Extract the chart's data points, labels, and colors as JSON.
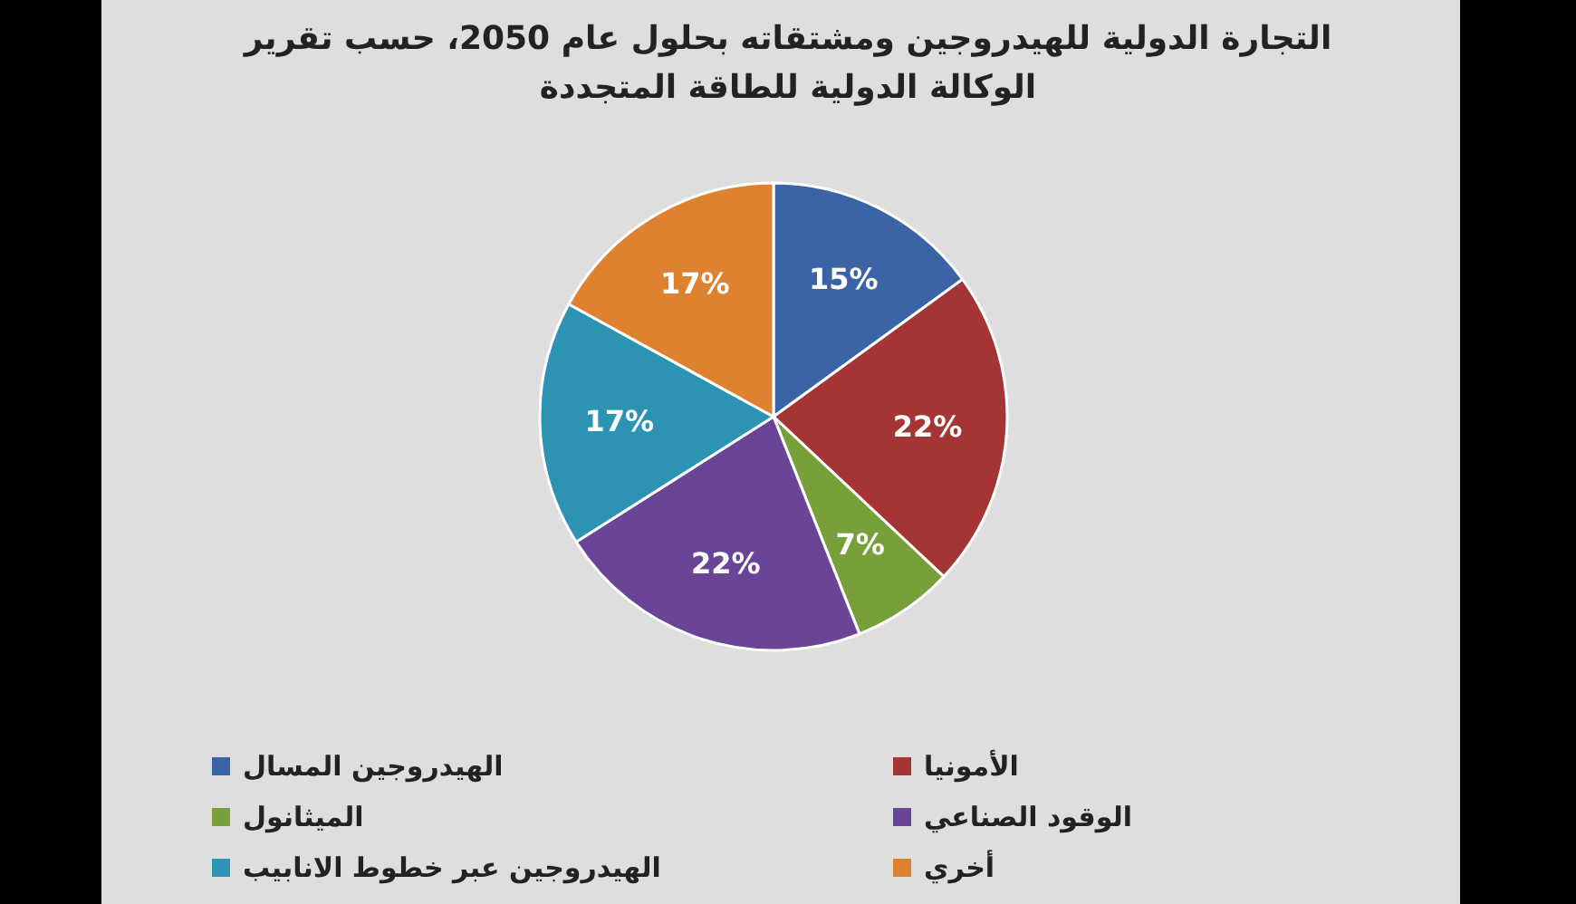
{
  "chart_data": {
    "type": "pie",
    "title": "التجارة الدولية للهيدروجين ومشتقاته بحلول عام 2050، حسب تقرير الوكالة الدولية للطاقة المتجددة",
    "categories": [
      "الهيدروجين المسال",
      "الأمونيا",
      "الميثانول",
      "الوقود الصناعي",
      "الهيدروجين عبر خطوط الانابيب",
      "أخري"
    ],
    "values": [
      15,
      22,
      7,
      22,
      17,
      17
    ],
    "value_labels": [
      "15%",
      "22%",
      "7%",
      "22%",
      "17%",
      "17%"
    ],
    "colors": [
      "#3b64a6",
      "#a53434",
      "#77a03a",
      "#6a4597",
      "#2d93b3",
      "#de8230"
    ],
    "legend": "bottom"
  }
}
